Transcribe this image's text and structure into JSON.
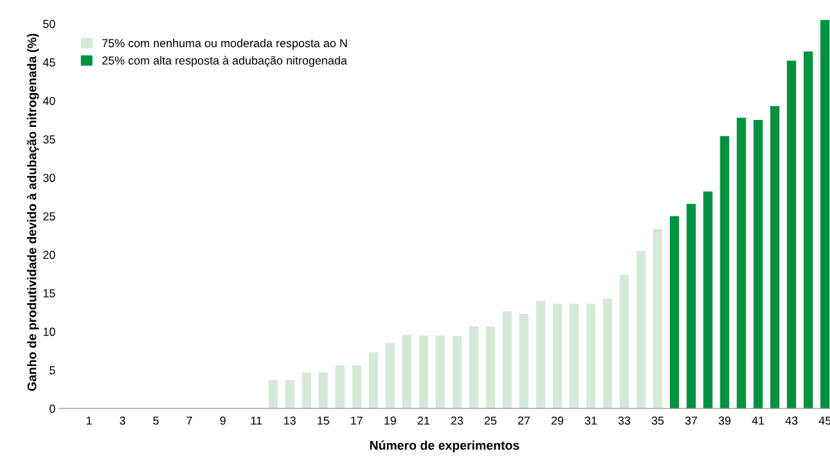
{
  "chart_data": {
    "type": "bar",
    "xlabel": "Número de experimentos",
    "ylabel": "Ganho de produtividade devido à adubação nitrogenada (%)",
    "categories": [
      "1",
      null,
      "3",
      null,
      "5",
      null,
      "7",
      null,
      "9",
      null,
      "11",
      null,
      "13",
      null,
      "15",
      null,
      "17",
      null,
      "19",
      null,
      "21",
      null,
      "23",
      null,
      "25",
      null,
      "27",
      null,
      "29",
      null,
      "31",
      null,
      "33",
      null,
      "35",
      null,
      "37",
      null,
      "39",
      null,
      "41",
      null,
      "43",
      null,
      "45"
    ],
    "series": [
      {
        "name": "75% com nenhuma ou moderada resposta ao N",
        "color": "#d6e9d8",
        "values": [
          0,
          0,
          0,
          0,
          0,
          0,
          0,
          0,
          0,
          0,
          0,
          3.7,
          3.7,
          4.7,
          4.7,
          5.6,
          5.6,
          7.3,
          8.5,
          9.6,
          9.5,
          9.5,
          9.4,
          10.7,
          10.7,
          12.6,
          12.3,
          14.0,
          13.6,
          13.6,
          13.6,
          14.3,
          17.4,
          20.5,
          23.3,
          null,
          null,
          null,
          null,
          null,
          null,
          null,
          null,
          null,
          null
        ]
      },
      {
        "name": "25% com alta resposta à adubação nitrogenada",
        "color": "#00923f",
        "values": [
          null,
          null,
          null,
          null,
          null,
          null,
          null,
          null,
          null,
          null,
          null,
          null,
          null,
          null,
          null,
          null,
          null,
          null,
          null,
          null,
          null,
          null,
          null,
          null,
          null,
          null,
          null,
          null,
          null,
          null,
          null,
          null,
          null,
          null,
          null,
          25.0,
          26.6,
          28.2,
          35.4,
          37.8,
          37.5,
          39.3,
          45.2,
          46.4,
          50.5
        ]
      }
    ],
    "ylim": [
      0,
      51
    ],
    "yticks": [
      0,
      5,
      10,
      15,
      20,
      25,
      30,
      35,
      40,
      45,
      50
    ],
    "grid": false,
    "legend": "top left"
  }
}
